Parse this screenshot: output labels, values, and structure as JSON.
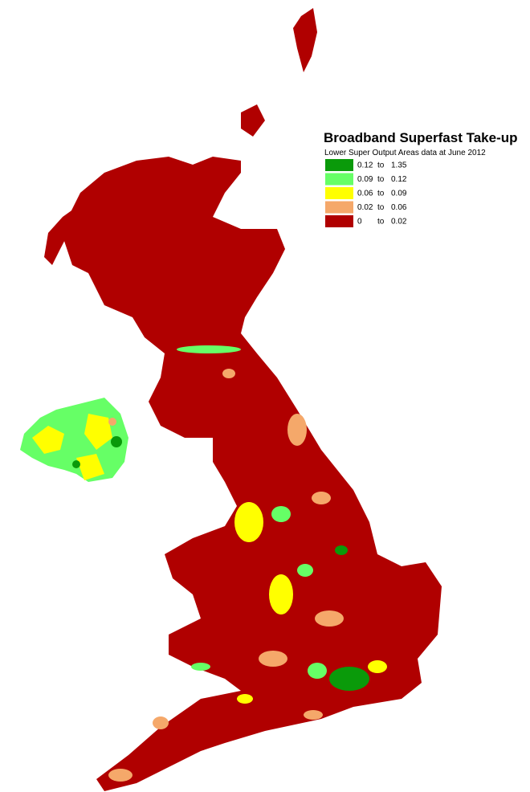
{
  "legend": {
    "title": "Broadband Superfast Take-up",
    "subtitle": "Lower Super Output Areas data at June 2012",
    "items": [
      {
        "color": "#0a9a0a",
        "from": 0.12,
        "word": "to",
        "to": 1.35
      },
      {
        "color": "#66ff66",
        "from": 0.09,
        "word": "to",
        "to": 0.12
      },
      {
        "color": "#ffff00",
        "from": 0.06,
        "word": "to",
        "to": 0.09
      },
      {
        "color": "#f5a86a",
        "from": 0.02,
        "word": "to",
        "to": 0.06
      },
      {
        "color": "#b00000",
        "from": 0,
        "word": "to",
        "to": 0.02
      }
    ]
  }
}
